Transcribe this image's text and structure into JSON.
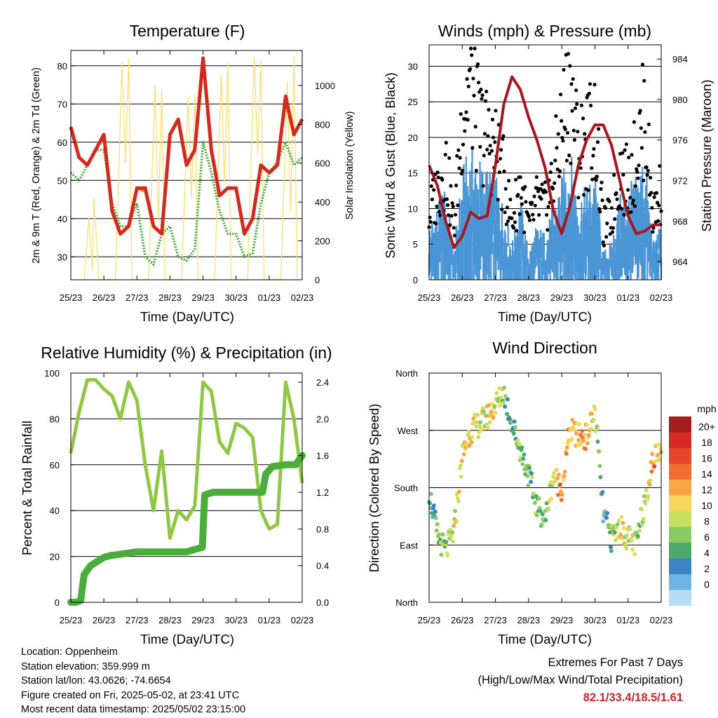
{
  "x_ticks": [
    "25/23",
    "26/23",
    "27/23",
    "28/23",
    "29/23",
    "30/23",
    "01/23",
    "02/23"
  ],
  "panels": {
    "temperature": {
      "title": "Temperature (F)",
      "xlabel": "Time (Day/UTC)",
      "ylabel_left": "2m & 9m T (Red, Orange) & 2m Td (Green)",
      "ylabel_right": "Solar Insolation (Yellow)",
      "left_ticks": [
        "30",
        "40",
        "50",
        "60",
        "70",
        "80"
      ],
      "right_ticks": [
        "0",
        "200",
        "400",
        "600",
        "800",
        "1000"
      ]
    },
    "wind": {
      "title": "Winds (mph) & Pressure (mb)",
      "xlabel": "Time (Day/UTC)",
      "ylabel_left": "Sonic Wind & Gust (Blue, Black)",
      "ylabel_right": "Station Pressure (Maroon)",
      "left_ticks": [
        "0",
        "5",
        "10",
        "15",
        "20",
        "25",
        "30"
      ],
      "right_ticks": [
        "964",
        "968",
        "972",
        "976",
        "980",
        "984"
      ]
    },
    "humidity": {
      "title": "Relative Humidity (%) & Precipitation (in)",
      "xlabel": "Time (Day/UTC)",
      "ylabel_left": "Percent & Total Rainfall",
      "left_ticks": [
        "0",
        "20",
        "40",
        "60",
        "80",
        "100"
      ],
      "right_ticks": [
        "0.0",
        "0.4",
        "0.8",
        "1.2",
        "1.6",
        "2.0",
        "2.4"
      ]
    },
    "direction": {
      "title": "Wind Direction",
      "xlabel": "Time (Day/UTC)",
      "ylabel_left": "Direction (Colored By Speed)",
      "left_ticks": [
        "North",
        "East",
        "South",
        "West",
        "North"
      ],
      "legend_title": "mph",
      "legend_labels": [
        "20+",
        "18",
        "16",
        "14",
        "12",
        "10",
        "8",
        "6",
        "4",
        "2",
        "0"
      ],
      "legend_colors": [
        "#a51c1c",
        "#d62a24",
        "#e8462a",
        "#f26c33",
        "#f9a547",
        "#f4d85b",
        "#c6df5e",
        "#8cc864",
        "#4da96a",
        "#3d84c5",
        "#6fb4e4",
        "#b6dff5"
      ]
    }
  },
  "info": {
    "location": "Location: Oppenheim",
    "elevation": "Station elevation: 359.999 m",
    "latlon": "Station lat/lon: 43.0626; -74.6654",
    "created": "Figure created on Fri, 2025-05-02, at 23:41 UTC",
    "latest": "Most recent data timestamp: 2025/05/02 23:15:00"
  },
  "extremes": {
    "title": "Extremes For Past 7 Days",
    "subtitle": "(High/Low/Max Wind/Total Precipitation)",
    "values": "82.1/33.4/18.5/1.61"
  },
  "chart_data": [
    {
      "type": "line",
      "title": "Temperature (F)",
      "xlabel": "Time (Day/UTC)",
      "ylabel": "2m & 9m T (Red, Orange) & 2m Td (Green)",
      "ylabel_right": "Solar Insolation (Yellow)",
      "x": [
        0,
        0.25,
        0.5,
        0.75,
        1,
        1.25,
        1.5,
        1.75,
        2,
        2.25,
        2.5,
        2.75,
        3,
        3.25,
        3.5,
        3.75,
        4,
        4.25,
        4.5,
        4.75,
        5,
        5.25,
        5.5,
        5.75,
        6,
        6.25,
        6.5,
        6.75,
        7
      ],
      "xlim": [
        0,
        7
      ],
      "ylim": [
        24,
        84
      ],
      "ylim_right": [
        0,
        1180
      ],
      "series": [
        {
          "name": "2m T",
          "color": "#d42a1e",
          "values": [
            64,
            56,
            54,
            58,
            62,
            42,
            36,
            38,
            48,
            48,
            38,
            36,
            62,
            66,
            54,
            58,
            82,
            58,
            46,
            48,
            48,
            36,
            40,
            54,
            52,
            54,
            72,
            62,
            66
          ]
        },
        {
          "name": "9m T",
          "color": "#f58a1f",
          "values": [
            64,
            56,
            54,
            58,
            61,
            42,
            36,
            38,
            48,
            47,
            38,
            36,
            62,
            66,
            54,
            58,
            81,
            58,
            46,
            48,
            48,
            36,
            40,
            54,
            52,
            54,
            70,
            62,
            66
          ]
        },
        {
          "name": "2m Td",
          "color": "#4aaa3c",
          "values": [
            52,
            50,
            54,
            58,
            58,
            44,
            38,
            38,
            44,
            30,
            28,
            36,
            38,
            30,
            29,
            32,
            60,
            52,
            42,
            36,
            36,
            30,
            31,
            44,
            52,
            55,
            60,
            54,
            56
          ]
        }
      ],
      "series_right": [
        {
          "name": "Solar Insolation",
          "color": "#f7e27a",
          "x": [
            0.4,
            0.55,
            0.65,
            0.7,
            0.85,
            1.35,
            1.55,
            1.65,
            1.75,
            1.85,
            2.35,
            2.55,
            2.65,
            2.75,
            2.85,
            3.35,
            3.55,
            3.65,
            3.75,
            3.85,
            4.35,
            4.55,
            4.65,
            4.75,
            4.85,
            5.35,
            5.55,
            5.65,
            5.75,
            5.85,
            6.35,
            6.55,
            6.65,
            6.75,
            6.85
          ],
          "values": [
            0,
            320,
            50,
            420,
            0,
            0,
            1120,
            600,
            1140,
            0,
            0,
            1000,
            300,
            980,
            0,
            0,
            940,
            420,
            960,
            0,
            0,
            1060,
            500,
            1120,
            0,
            0,
            1150,
            650,
            1130,
            0,
            0,
            1020,
            350,
            1150,
            0
          ]
        }
      ]
    },
    {
      "type": "scatter",
      "title": "Winds (mph) & Pressure (mb)",
      "xlabel": "Time (Day/UTC)",
      "ylabel": "Sonic Wind & Gust (Blue, Black)",
      "ylabel_right": "Station Pressure (Maroon)",
      "xlim": [
        0,
        7
      ],
      "ylim": [
        0,
        33
      ],
      "ylim_right": [
        962.2,
        985.4
      ],
      "series": [
        {
          "name": "Sonic Wind",
          "color": "#4a95d6",
          "x": [
            0,
            0.25,
            0.5,
            0.75,
            1,
            1.25,
            1.5,
            1.75,
            2,
            2.25,
            2.5,
            2.75,
            3,
            3.25,
            3.5,
            3.75,
            4,
            4.25,
            4.5,
            4.75,
            5,
            5.25,
            5.5,
            5.75,
            6,
            6.25,
            6.5,
            6.75,
            7
          ],
          "values": [
            6,
            8,
            10,
            3,
            12,
            14,
            13,
            12,
            11,
            8,
            4,
            9,
            3,
            6,
            5,
            8,
            11,
            14,
            9,
            10,
            12,
            3,
            4,
            9,
            10,
            11,
            14,
            4,
            6
          ]
        },
        {
          "name": "Gust",
          "color": "#000000",
          "x": [
            0,
            0.25,
            0.5,
            0.75,
            1,
            1.25,
            1.5,
            1.75,
            2,
            2.25,
            2.5,
            2.75,
            3,
            3.25,
            3.5,
            3.75,
            4,
            4.25,
            4.5,
            4.75,
            5,
            5.25,
            5.5,
            5.75,
            6,
            6.25,
            6.5,
            6.75,
            7
          ],
          "values": [
            10,
            14,
            18,
            8,
            26,
            31,
            24,
            22,
            20,
            16,
            9,
            15,
            8,
            12,
            11,
            16,
            24,
            30,
            20,
            22,
            24,
            8,
            10,
            17,
            15,
            19,
            26,
            10,
            14
          ]
        },
        {
          "name": "Station Pressure",
          "color": "#a3191f",
          "axis": "right",
          "x": [
            0,
            0.25,
            0.5,
            0.75,
            1,
            1.25,
            1.5,
            1.75,
            2,
            2.25,
            2.5,
            2.75,
            3,
            3.25,
            3.5,
            3.75,
            4,
            4.25,
            4.5,
            4.75,
            5,
            5.25,
            5.5,
            5.75,
            6,
            6.25,
            6.5,
            6.75,
            7
          ],
          "values": [
            974,
            972,
            968,
            964,
            965.5,
            971,
            968,
            966,
            974,
            980,
            984,
            981,
            978,
            976,
            974,
            969,
            964,
            970,
            974,
            976,
            978,
            978,
            976,
            972,
            968,
            966,
            967,
            968,
            967.5
          ]
        }
      ]
    },
    {
      "type": "line",
      "title": "Relative Humidity (%) & Precipitation (in)",
      "xlabel": "Time (Day/UTC)",
      "ylabel": "Percent & Total Rainfall",
      "xlim": [
        0,
        7
      ],
      "ylim": [
        0,
        100
      ],
      "ylim_right": [
        0,
        2.5
      ],
      "series": [
        {
          "name": "Relative Humidity",
          "color": "#90c846",
          "x": [
            0,
            0.25,
            0.5,
            0.75,
            1,
            1.25,
            1.5,
            1.75,
            2,
            2.25,
            2.5,
            2.75,
            3,
            3.25,
            3.5,
            3.75,
            4,
            4.25,
            4.5,
            4.75,
            5,
            5.25,
            5.5,
            5.75,
            6,
            6.25,
            6.5,
            6.75,
            7
          ],
          "values": [
            65,
            83,
            97,
            97,
            93,
            90,
            80,
            96,
            88,
            60,
            40,
            66,
            28,
            40,
            36,
            42,
            96,
            92,
            70,
            65,
            78,
            76,
            72,
            40,
            32,
            34,
            96,
            80,
            52
          ]
        },
        {
          "name": "Total Precipitation",
          "color": "#4aae3b",
          "axis": "right",
          "x": [
            0,
            0.15,
            0.3,
            0.4,
            0.6,
            1,
            1.2,
            1.6,
            2,
            2.5,
            3,
            3.5,
            3.98,
            4.05,
            4.3,
            5,
            5.8,
            5.9,
            6.1,
            6.5,
            6.8,
            7
          ],
          "values": [
            0,
            0,
            0.02,
            0.3,
            0.4,
            0.49,
            0.51,
            0.53,
            0.55,
            0.55,
            0.55,
            0.55,
            0.6,
            1.17,
            1.2,
            1.2,
            1.2,
            1.4,
            1.48,
            1.5,
            1.5,
            1.6
          ]
        }
      ]
    },
    {
      "type": "scatter",
      "title": "Wind Direction",
      "xlabel": "Time (Day/UTC)",
      "ylabel": "Direction (Colored By Speed)",
      "xlim": [
        0,
        7
      ],
      "ylim": [
        0,
        360
      ],
      "x": [
        0,
        0.25,
        0.5,
        0.75,
        1,
        1.25,
        1.5,
        1.75,
        2,
        2.25,
        2.5,
        2.75,
        3,
        3.25,
        3.5,
        3.75,
        4,
        4.25,
        4.5,
        4.75,
        5,
        5.25,
        5.5,
        5.75,
        6,
        6.25,
        6.5,
        6.75,
        7
      ],
      "direction_deg": [
        175,
        105,
        80,
        110,
        230,
        270,
        280,
        290,
        310,
        330,
        280,
        240,
        200,
        150,
        130,
        200,
        180,
        270,
        260,
        260,
        300,
        140,
        100,
        120,
        100,
        90,
        160,
        220,
        250
      ],
      "speed_mph": [
        3,
        5,
        8,
        10,
        10,
        12,
        9,
        11,
        10,
        7,
        4,
        8,
        5,
        7,
        6,
        10,
        15,
        12,
        13,
        12,
        8,
        4,
        6,
        11,
        9,
        8,
        7,
        15,
        10
      ]
    }
  ]
}
